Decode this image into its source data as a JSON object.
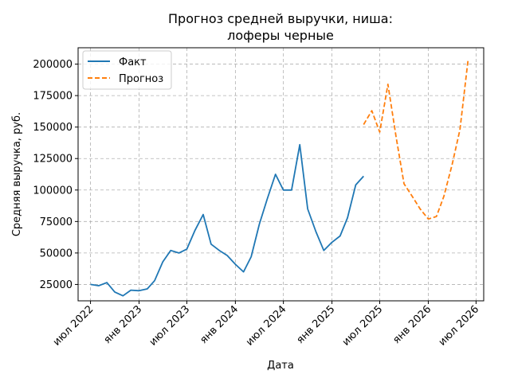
{
  "chart_data": {
    "type": "line",
    "title_line1": "Прогноз средней выручки, ниша:",
    "title_line2": "лоферы черные",
    "xlabel": "Дата",
    "ylabel": "Средняя выручка, руб.",
    "ylim": [
      12000,
      213000
    ],
    "xlim": [
      "2022-05-15",
      "2026-07-30"
    ],
    "grid": true,
    "legend_position": "upper left",
    "x_ticks": [
      {
        "date": "2022-07-01",
        "label": "июл 2022"
      },
      {
        "date": "2023-01-01",
        "label": "янв 2023"
      },
      {
        "date": "2023-07-01",
        "label": "июл 2023"
      },
      {
        "date": "2024-01-01",
        "label": "янв 2024"
      },
      {
        "date": "2024-07-01",
        "label": "июл 2024"
      },
      {
        "date": "2025-01-01",
        "label": "янв 2025"
      },
      {
        "date": "2025-07-01",
        "label": "июл 2025"
      },
      {
        "date": "2026-01-01",
        "label": "янв 2026"
      },
      {
        "date": "2026-07-01",
        "label": "июл 2026"
      }
    ],
    "y_ticks": [
      {
        "value": 25000,
        "label": "25000"
      },
      {
        "value": 50000,
        "label": "50000"
      },
      {
        "value": 75000,
        "label": "75000"
      },
      {
        "value": 100000,
        "label": "100000"
      },
      {
        "value": 125000,
        "label": "125000"
      },
      {
        "value": 150000,
        "label": "150000"
      },
      {
        "value": 175000,
        "label": "175000"
      },
      {
        "value": 200000,
        "label": "200000"
      }
    ],
    "series": [
      {
        "name": "Факт",
        "color": "#1f77b4",
        "style": "solid",
        "x": [
          "2022-07-01",
          "2022-08-01",
          "2022-09-01",
          "2022-10-01",
          "2022-11-01",
          "2022-12-01",
          "2023-01-01",
          "2023-02-01",
          "2023-03-01",
          "2023-04-01",
          "2023-05-01",
          "2023-06-01",
          "2023-07-01",
          "2023-08-01",
          "2023-09-01",
          "2023-10-01",
          "2023-11-01",
          "2023-12-01",
          "2024-01-01",
          "2024-02-01",
          "2024-03-01",
          "2024-04-01",
          "2024-05-01",
          "2024-06-01",
          "2024-07-01",
          "2024-08-01",
          "2024-09-01",
          "2024-10-01",
          "2024-11-01",
          "2024-12-01",
          "2025-01-01",
          "2025-02-01",
          "2025-03-01",
          "2025-04-01",
          "2025-05-01"
        ],
        "values": [
          25000,
          24000,
          26500,
          19000,
          16000,
          20500,
          20000,
          21500,
          28000,
          43000,
          52000,
          50000,
          53000,
          68000,
          80500,
          57000,
          52000,
          48000,
          41000,
          35000,
          47000,
          73000,
          93000,
          112500,
          100000,
          100000,
          136000,
          85000,
          67000,
          52000,
          58500,
          63500,
          78000,
          104000,
          111000
        ]
      },
      {
        "name": "Прогноз",
        "color": "#ff7f0e",
        "style": "dashed",
        "x": [
          "2025-05-01",
          "2025-06-01",
          "2025-07-01",
          "2025-08-01",
          "2025-09-01",
          "2025-10-01",
          "2025-11-01",
          "2025-12-01",
          "2026-01-01",
          "2026-02-01",
          "2026-03-01",
          "2026-04-01",
          "2026-05-01",
          "2026-06-01"
        ],
        "values": [
          152000,
          163000,
          146000,
          184000,
          142000,
          105000,
          95000,
          85000,
          77000,
          79000,
          95000,
          120000,
          148000,
          204000
        ]
      }
    ]
  }
}
